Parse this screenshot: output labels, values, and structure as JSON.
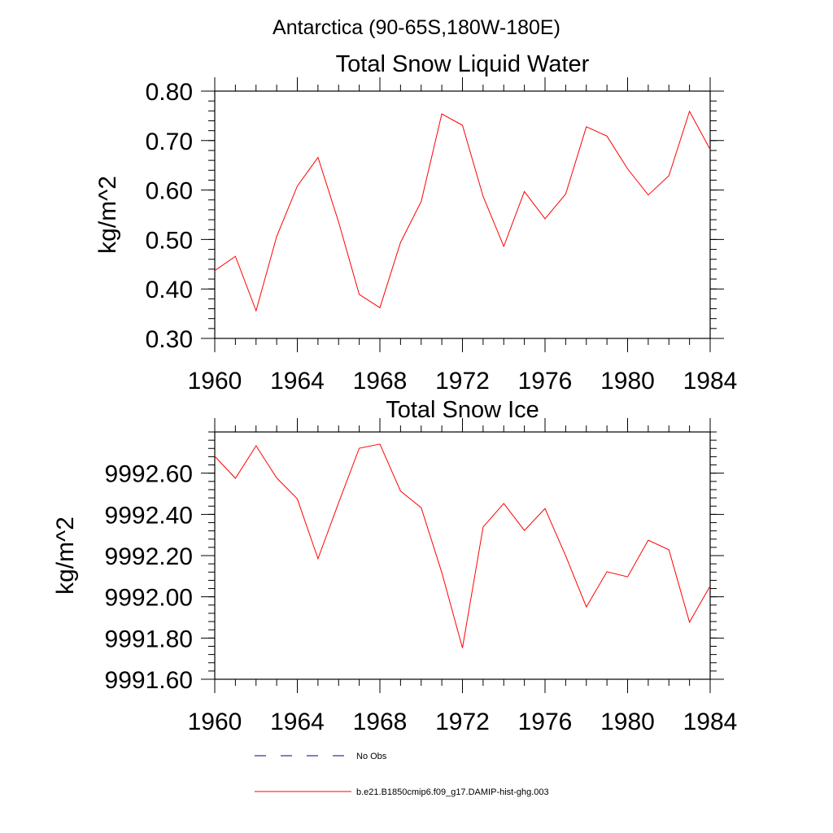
{
  "suptitle": "Antarctica (90-65S,180W-180E)",
  "colors": {
    "series": "#ff0000",
    "obs": "#000080"
  },
  "legend": [
    {
      "label": "No Obs",
      "style": "dashed",
      "color": "#000080"
    },
    {
      "label": "b.e21.B1850cmip6.f09_g17.DAMIP-hist-ghg.003",
      "style": "solid",
      "color": "#ff0000"
    }
  ],
  "chart_data": [
    {
      "type": "line",
      "title": "Total Snow Liquid Water",
      "xlabel": "",
      "ylabel": "kg/m^2",
      "xlim": [
        1960,
        1984
      ],
      "ylim": [
        0.3,
        0.8
      ],
      "x_ticks": [
        1960,
        1964,
        1968,
        1972,
        1976,
        1980,
        1984
      ],
      "y_ticks": [
        "0.30",
        "0.40",
        "0.50",
        "0.60",
        "0.70",
        "0.80"
      ],
      "x_minor": 1,
      "y_minor": 0.02,
      "grid": false,
      "x": [
        1960,
        1961,
        1962,
        1963,
        1964,
        1965,
        1966,
        1967,
        1968,
        1969,
        1970,
        1971,
        1972,
        1973,
        1974,
        1975,
        1976,
        1977,
        1978,
        1979,
        1980,
        1981,
        1982,
        1983,
        1984
      ],
      "series": [
        {
          "values": [
            0.437,
            0.466,
            0.356,
            0.506,
            0.608,
            0.666,
            0.535,
            0.389,
            0.362,
            0.494,
            0.577,
            0.754,
            0.731,
            0.587,
            0.486,
            0.597,
            0.542,
            0.592,
            0.728,
            0.709,
            0.643,
            0.59,
            0.629,
            0.759,
            0.682
          ]
        }
      ]
    },
    {
      "type": "line",
      "title": "Total Snow Ice",
      "xlabel": "",
      "ylabel": "kg/m^2",
      "xlim": [
        1960,
        1984
      ],
      "ylim": [
        9991.6,
        9992.8
      ],
      "x_ticks": [
        1960,
        1964,
        1968,
        1972,
        1976,
        1980,
        1984
      ],
      "y_ticks": [
        "9991.60",
        "9991.80",
        "9992.00",
        "9992.20",
        "9992.40",
        "9992.60"
      ],
      "x_minor": 1,
      "y_minor": 0.04,
      "grid": false,
      "x": [
        1960,
        1961,
        1962,
        1963,
        1964,
        1965,
        1966,
        1967,
        1968,
        1969,
        1970,
        1971,
        1972,
        1973,
        1974,
        1975,
        1976,
        1977,
        1978,
        1979,
        1980,
        1981,
        1982,
        1983,
        1984
      ],
      "series": [
        {
          "values": [
            9992.682,
            9992.575,
            9992.733,
            9992.577,
            9992.475,
            9992.185,
            9992.457,
            9992.721,
            9992.741,
            9992.513,
            9992.432,
            9992.118,
            9991.752,
            9992.339,
            9992.453,
            9992.322,
            9992.428,
            9992.199,
            9991.951,
            9992.122,
            9992.097,
            9992.275,
            9992.228,
            9991.877,
            9992.053
          ]
        }
      ]
    }
  ]
}
